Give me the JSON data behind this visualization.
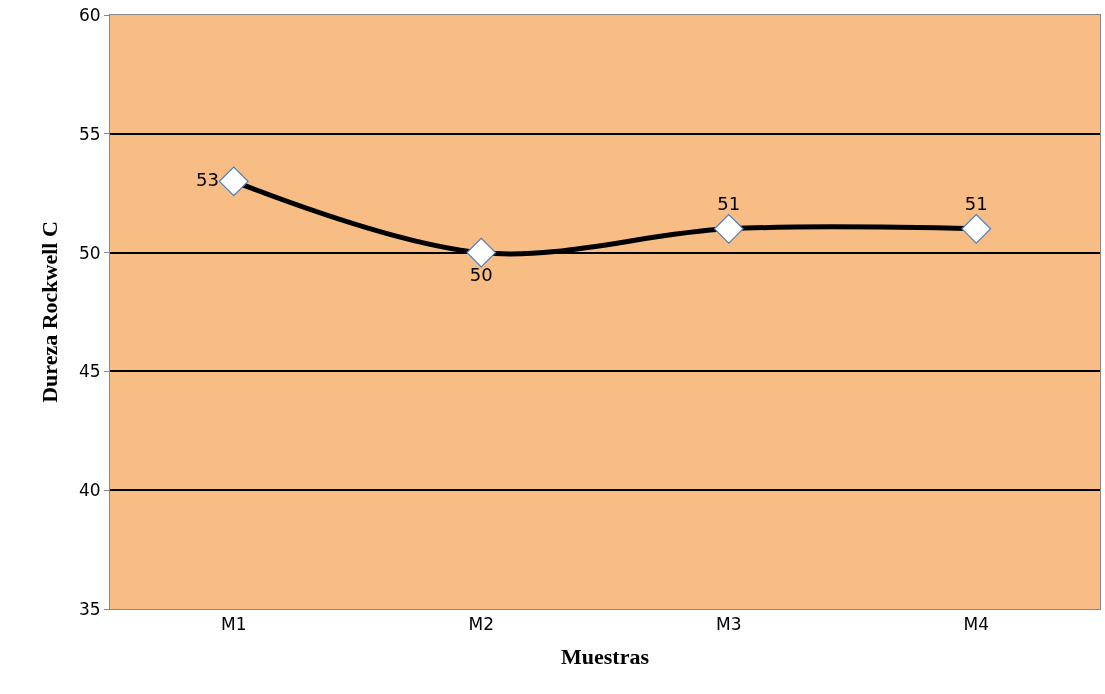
{
  "chart_data": {
    "type": "line",
    "xlabel": "Muestras",
    "ylabel": "Dureza Rockwell C",
    "categories": [
      "M1",
      "M2",
      "M3",
      "M4"
    ],
    "series": [
      {
        "color": "#000000",
        "values": [
          53,
          50,
          51,
          51
        ]
      }
    ],
    "ylim": [
      35,
      60
    ],
    "yticks": [
      35,
      40,
      45,
      50,
      55,
      60
    ],
    "grid": "y",
    "marker": "diamond",
    "line_style": "solid",
    "data_labels": true
  }
}
